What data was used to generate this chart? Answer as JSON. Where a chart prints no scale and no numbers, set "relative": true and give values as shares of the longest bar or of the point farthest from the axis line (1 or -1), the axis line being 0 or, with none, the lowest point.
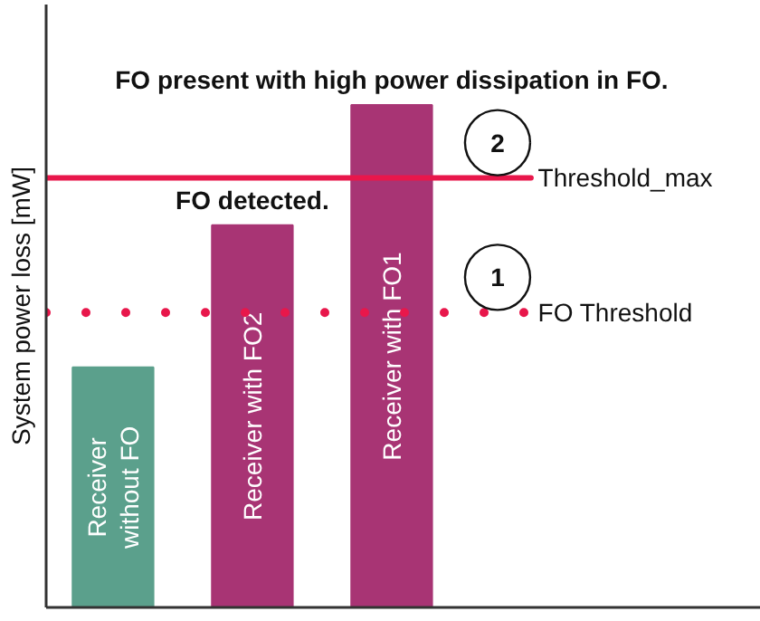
{
  "chart_data": {
    "type": "bar",
    "relative": true,
    "ylabel": "System power loss [mW]",
    "categories": [
      "Receiver without FO",
      "Receiver with FO2",
      "Receiver with FO1"
    ],
    "values": [
      0.478,
      0.761,
      1
    ],
    "colors": [
      "#5ba08c",
      "#a83474",
      "#a83474"
    ],
    "ref_lines": [
      {
        "axis": "y",
        "value": 0.587,
        "label": "FO Threshold",
        "color": "#e8174b",
        "line_style": "dotted"
      },
      {
        "axis": "y",
        "value": 0.855,
        "label": "Threshold_max",
        "color": "#e8174b",
        "line_style": "solid"
      }
    ],
    "annotations": [
      "FO present with high power dissipation in FO.",
      "FO detected.",
      "1",
      "2"
    ],
    "tick_labels": false
  }
}
